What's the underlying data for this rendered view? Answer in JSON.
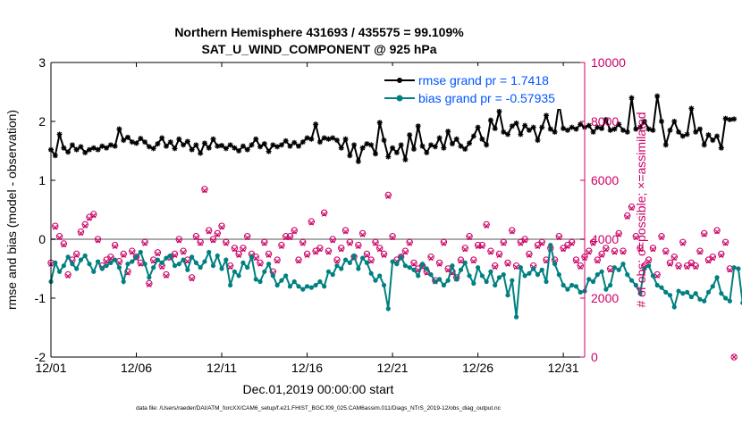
{
  "chart_data": {
    "type": "line",
    "title": "Northern Hemisphere 431693 / 435575 = 99.109%",
    "subtitle": "SAT_U_WIND_COMPONENT @ 925 hPa",
    "xlabel": "Dec.01,2019 00:00:00 start",
    "ylabel_left": "rmse and bias (model - observation)",
    "ylabel_right": "# of obs: o=possible; ×=assimilated",
    "footer": "data file: /Users/raeder/DAI/ATM_forcXX/CAM6_setup/f.e21.FHIST_BGC.f09_025.CAM6assim.011/Diags_NTrS_2019-12/obs_diag_output.nc",
    "xlim": [
      0,
      31.25
    ],
    "ylim_left": [
      -2,
      3
    ],
    "ylim_right": [
      0,
      10000
    ],
    "x_ticks": [
      0,
      5,
      10,
      15,
      20,
      25,
      30
    ],
    "x_tick_labels": [
      "12/01",
      "12/06",
      "12/11",
      "12/16",
      "12/21",
      "12/26",
      "12/31"
    ],
    "y_ticks_left": [
      -2,
      -1,
      0,
      1,
      2,
      3
    ],
    "y_tick_labels_left": [
      "-2",
      "-1",
      "0",
      "1",
      "2",
      "3"
    ],
    "y_ticks_right": [
      0,
      2000,
      4000,
      6000,
      8000,
      10000
    ],
    "y_tick_labels_right": [
      "0",
      "2000",
      "4000",
      "6000",
      "8000",
      "10000"
    ],
    "zero_line": 0,
    "colors": {
      "rmse": "#000000",
      "bias": "#008080",
      "obs": "#cc0066",
      "legend_text": "#0055ff",
      "zero_line": "#aaaaaa"
    },
    "legend": {
      "rmse_label": "rmse grand pr = 1.7418",
      "bias_label": "bias grand pr = -0.57935"
    },
    "step_days": 0.25,
    "series": [
      {
        "name": "rmse",
        "axis": "left",
        "values": [
          1.52,
          1.42,
          1.78,
          1.55,
          1.48,
          1.6,
          1.52,
          1.57,
          1.47,
          1.52,
          1.55,
          1.52,
          1.58,
          1.55,
          1.6,
          1.58,
          1.87,
          1.68,
          1.73,
          1.65,
          1.63,
          1.71,
          1.65,
          1.57,
          1.54,
          1.62,
          1.72,
          1.58,
          1.65,
          1.54,
          1.7,
          1.6,
          1.66,
          1.52,
          1.6,
          1.46,
          1.63,
          1.55,
          1.7,
          1.58,
          1.59,
          1.54,
          1.6,
          1.55,
          1.5,
          1.58,
          1.52,
          1.6,
          1.7,
          1.57,
          1.62,
          1.49,
          1.6,
          1.57,
          1.6,
          1.67,
          1.58,
          1.64,
          1.58,
          1.65,
          1.72,
          1.7,
          1.95,
          1.65,
          1.72,
          1.7,
          1.72,
          1.68,
          1.55,
          1.7,
          1.42,
          1.6,
          1.32,
          1.55,
          1.62,
          1.6,
          1.45,
          1.98,
          1.68,
          1.4,
          1.55,
          1.47,
          1.6,
          1.35,
          1.77,
          1.53,
          1.92,
          1.58,
          1.47,
          1.6,
          1.57,
          1.72,
          1.55,
          1.83,
          1.62,
          1.7,
          1.58,
          1.53,
          1.63,
          1.75,
          1.9,
          1.7,
          1.6,
          2.02,
          1.88,
          2.17,
          1.82,
          1.78,
          1.92,
          1.97,
          1.78,
          1.93,
          1.85,
          1.9,
          1.68,
          1.9,
          2.1,
          1.87,
          1.82,
          2.3,
          1.88,
          1.85,
          1.9,
          1.87,
          1.95,
          1.9,
          1.93,
          1.82,
          1.9,
          1.88,
          2.03,
          1.85,
          1.87,
          1.95,
          1.85,
          1.82,
          2.4,
          1.87,
          1.9,
          2.0,
          1.87,
          1.85,
          2.43,
          2.0,
          1.6,
          1.85,
          2.0,
          1.82,
          1.75,
          1.78,
          2.22,
          1.82,
          1.87,
          1.6,
          1.77,
          1.68,
          1.75,
          1.55,
          2.05,
          2.03,
          2.04
        ]
      },
      {
        "name": "bias",
        "axis": "left",
        "values": [
          -0.72,
          -0.4,
          -0.55,
          -0.45,
          -0.3,
          -0.42,
          -0.5,
          -0.35,
          -0.28,
          -0.42,
          -0.55,
          -0.38,
          -0.5,
          -0.45,
          -0.4,
          -0.35,
          -0.48,
          -0.72,
          -0.42,
          -0.38,
          -0.3,
          -0.22,
          -0.42,
          -0.65,
          -0.48,
          -0.35,
          -0.4,
          -0.32,
          -0.28,
          -0.45,
          -0.42,
          -0.35,
          -0.52,
          -0.3,
          -0.4,
          -0.48,
          -0.38,
          -0.22,
          -0.45,
          -0.28,
          -0.5,
          -0.35,
          -0.78,
          -0.55,
          -0.62,
          -0.4,
          -0.48,
          -0.3,
          -0.68,
          -0.72,
          -0.55,
          -0.42,
          -0.62,
          -0.78,
          -0.7,
          -0.62,
          -0.8,
          -0.72,
          -0.8,
          -0.85,
          -0.8,
          -0.82,
          -0.78,
          -0.72,
          -0.8,
          -0.55,
          -0.6,
          -0.45,
          -0.5,
          -0.35,
          -0.4,
          -0.28,
          -0.5,
          -0.32,
          -0.4,
          -0.58,
          -0.7,
          -0.62,
          -0.78,
          -1.18,
          -0.38,
          -0.42,
          -0.3,
          -0.45,
          -0.48,
          -0.52,
          -0.62,
          -0.42,
          -0.5,
          -0.6,
          -0.72,
          -0.68,
          -0.78,
          -0.7,
          -0.45,
          -0.68,
          -0.52,
          -0.4,
          -0.62,
          -0.75,
          -0.48,
          -0.62,
          -0.72,
          -0.55,
          -0.78,
          -0.65,
          -0.6,
          -0.95,
          -0.7,
          -1.32,
          -0.48,
          -0.62,
          -0.58,
          -0.5,
          -0.6,
          -0.52,
          -0.72,
          -0.1,
          -0.42,
          -0.6,
          -0.78,
          -0.85,
          -0.78,
          -0.8,
          -0.9,
          -0.88,
          -0.68,
          -0.72,
          -0.6,
          -0.55,
          -0.85,
          -0.78,
          -0.48,
          -0.52,
          -0.42,
          -0.6,
          -0.7,
          -0.78,
          -0.92,
          -0.5,
          -0.45,
          -0.62,
          -0.78,
          -0.82,
          -0.9,
          -0.95,
          -1.15,
          -0.88,
          -0.92,
          -0.9,
          -0.98,
          -0.92,
          -1.02,
          -1.05,
          -0.9,
          -0.8,
          -0.65,
          -0.92,
          -1.0,
          -1.05,
          -0.48,
          -0.5,
          -1.08
        ]
      },
      {
        "name": "obs_possible",
        "axis": "right",
        "marker": "o",
        "values": [
          3200,
          4450,
          4100,
          3850,
          2800,
          3300,
          3500,
          4250,
          4500,
          4750,
          4850,
          4000,
          3100,
          3300,
          3400,
          3800,
          3250,
          3500,
          2900,
          3600,
          3400,
          3200,
          3900,
          2500,
          3300,
          3550,
          3100,
          2800,
          3400,
          3500,
          4000,
          3600,
          3300,
          2700,
          4100,
          3900,
          5700,
          4300,
          4000,
          4200,
          4450,
          3900,
          3100,
          3700,
          3500,
          3700,
          4100,
          3500,
          3400,
          3200,
          3900,
          3500,
          2900,
          3300,
          3800,
          4100,
          4100,
          4300,
          3300,
          3900,
          3500,
          4600,
          3600,
          3700,
          4900,
          3600,
          4000,
          3300,
          3700,
          4300,
          3900,
          3400,
          3800,
          4200,
          3500,
          3300,
          3900,
          3700,
          3500,
          5500,
          4100,
          3300,
          3400,
          3600,
          3900,
          3200,
          3000,
          3100,
          2900,
          3400,
          2600,
          3200,
          3900,
          3000,
          2900,
          2700,
          3300,
          3700,
          4100,
          3300,
          3800,
          3800,
          4500,
          3600,
          3100,
          3500,
          3900,
          3200,
          4300,
          3100,
          3900,
          4000,
          3500,
          3100,
          3800,
          3900,
          3300,
          3700,
          3300,
          4100,
          3700,
          3800,
          3900,
          3300,
          3100,
          3400,
          3600,
          3900,
          3300,
          3500,
          3700,
          3000,
          3600,
          4200,
          3600,
          4800,
          5100,
          4100,
          3700,
          3100,
          3300,
          3700,
          2800,
          4100,
          3600,
          3200,
          3400,
          3100,
          3900,
          3100,
          3200,
          3100,
          3600,
          4200,
          3300,
          3400,
          4300,
          3500,
          3900,
          3000,
          0
        ]
      },
      {
        "name": "obs_assimilated",
        "axis": "right",
        "marker": "x",
        "values": [
          3150,
          4400,
          4050,
          3800,
          2750,
          3250,
          3450,
          4200,
          4450,
          4700,
          4800,
          3950,
          3050,
          3250,
          3350,
          3750,
          3200,
          3450,
          2850,
          3550,
          3350,
          3150,
          3850,
          2450,
          3250,
          3500,
          3050,
          2750,
          3350,
          3450,
          3950,
          3550,
          3250,
          2650,
          4050,
          3850,
          5650,
          4250,
          3950,
          4150,
          4400,
          3850,
          3050,
          3650,
          3450,
          3650,
          4050,
          3450,
          3350,
          3150,
          3850,
          3450,
          2850,
          3250,
          3750,
          4050,
          4050,
          4250,
          3250,
          3850,
          3450,
          4550,
          3550,
          3650,
          4850,
          3550,
          3950,
          3250,
          3650,
          4250,
          3850,
          3350,
          3750,
          4150,
          3450,
          3250,
          3850,
          3650,
          3450,
          5450,
          4050,
          3250,
          3350,
          3550,
          3850,
          3150,
          2950,
          3050,
          2850,
          3350,
          2550,
          3150,
          3850,
          2950,
          2850,
          2650,
          3250,
          3650,
          4050,
          3250,
          3750,
          3750,
          4450,
          3550,
          3050,
          3450,
          3850,
          3150,
          4250,
          3050,
          3850,
          3950,
          3450,
          3050,
          3750,
          3850,
          3250,
          3650,
          3250,
          4050,
          3650,
          3750,
          3850,
          3250,
          3050,
          3350,
          3550,
          3850,
          3250,
          3450,
          3650,
          2950,
          3550,
          4150,
          3550,
          4750,
          5050,
          4050,
          3650,
          3050,
          3250,
          3650,
          2750,
          4050,
          3550,
          3150,
          3350,
          3050,
          3850,
          3050,
          3150,
          3050,
          3550,
          4150,
          3250,
          3350,
          4250,
          3450,
          3850,
          2950,
          0
        ]
      }
    ]
  }
}
